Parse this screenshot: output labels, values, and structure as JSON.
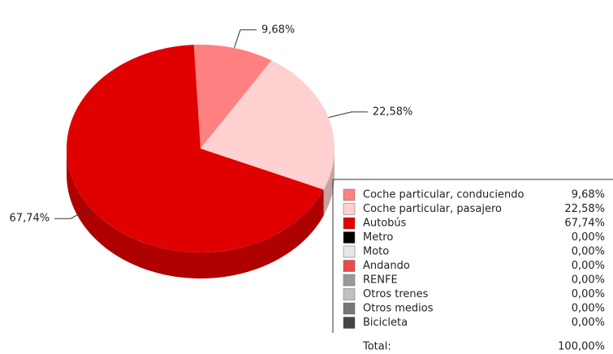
{
  "chart_data": {
    "type": "pie3d",
    "categories": [
      "Coche particular, conduciendo",
      "Coche particular, pasajero",
      "Autobús",
      "Metro",
      "Moto",
      "Andando",
      "RENFE",
      "Otros trenes",
      "Otros medios",
      "Bicicleta"
    ],
    "values": [
      9.68,
      22.58,
      67.74,
      0,
      0,
      0,
      0,
      0,
      0,
      0
    ],
    "value_labels": [
      "9,68%",
      "22,58%",
      "67,74%",
      "0,00%",
      "0,00%",
      "0,00%",
      "0,00%",
      "0,00%",
      "0,00%",
      "0,00%"
    ],
    "colors": [
      "#ff8080",
      "#ffd0d0",
      "#e00000",
      "#000000",
      "#e6e6e6",
      "#f04848",
      "#999999",
      "#c0c0c0",
      "#777777",
      "#444444"
    ],
    "total_label": "Total:",
    "total": {
      "value": 100,
      "label": "100,00%"
    }
  }
}
